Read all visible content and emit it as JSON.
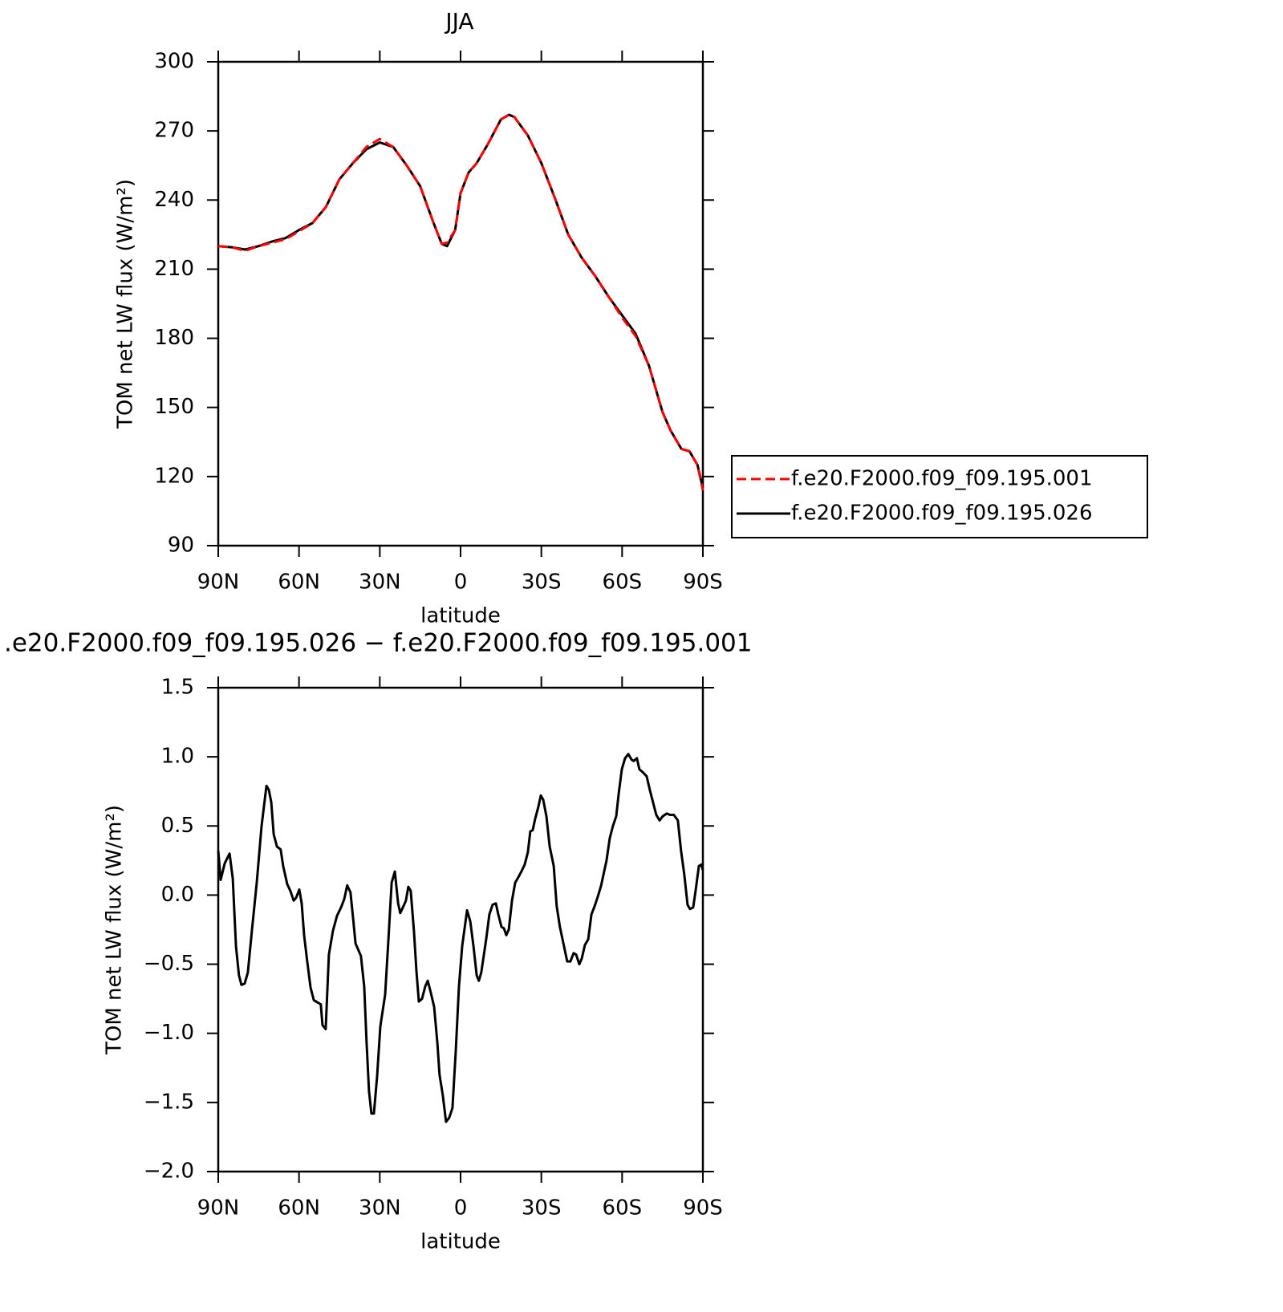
{
  "chart_data": [
    {
      "type": "line",
      "title": "JJA",
      "x_label": "latitude",
      "y_label": "TOM net LW flux (W/m²)",
      "x": [
        90,
        85,
        80,
        75,
        70,
        65,
        60,
        55,
        50,
        45,
        40,
        35,
        30,
        25,
        20,
        15,
        10,
        7,
        5,
        2,
        0,
        -3,
        -6,
        -10,
        -15,
        -18,
        -20,
        -25,
        -30,
        -35,
        -40,
        -45,
        -50,
        -55,
        -60,
        -65,
        -70,
        -75,
        -78,
        -82,
        -85,
        -88,
        -90
      ],
      "series": [
        {
          "name": "f.e20.F2000.f09_f09.195.001",
          "color": "#ff0000",
          "linestyle": "dashed",
          "values": [
            220,
            219.5,
            218,
            220,
            221.5,
            223,
            226.5,
            230,
            237,
            249,
            256,
            263,
            266.5,
            263,
            255,
            246,
            230,
            221,
            221.5,
            227,
            243,
            252,
            256,
            264,
            275,
            277,
            276,
            268,
            256,
            241,
            225,
            215,
            207,
            198,
            189,
            181,
            168,
            148,
            140,
            132,
            131,
            125,
            114
          ]
        },
        {
          "name": "f.e20.F2000.f09_f09.195.026",
          "color": "#000000",
          "linestyle": "solid",
          "values": [
            220,
            219.5,
            218.5,
            220,
            222,
            223.5,
            227,
            230,
            237,
            249,
            256,
            262,
            265,
            263,
            255,
            246,
            230,
            221,
            220,
            227,
            243,
            252,
            256,
            264,
            275,
            277,
            276,
            268,
            256,
            241,
            225,
            215,
            207,
            198,
            190,
            182,
            168,
            148,
            140,
            132,
            131,
            125,
            115
          ]
        }
      ],
      "xlim": [
        90,
        -90
      ],
      "xticks": [
        {
          "value": 90,
          "label": "90N"
        },
        {
          "value": 60,
          "label": "60N"
        },
        {
          "value": 30,
          "label": "30N"
        },
        0,
        {
          "value": -30,
          "label": "30S"
        },
        {
          "value": -60,
          "label": "60S"
        },
        {
          "value": -90,
          "label": "90S"
        }
      ],
      "ylim": [
        90,
        300
      ],
      "yticks": [
        90,
        120,
        150,
        180,
        210,
        240,
        270,
        300
      ],
      "legend_position": "right"
    },
    {
      "type": "line",
      "title": ".e20.F2000.f09_f09.195.026 − f.e20.F2000.f09_f09.195.001",
      "x_label": "latitude",
      "y_label": "TOM net LW flux (W/m²)",
      "x": [
        90,
        89.1,
        87.6,
        85.8,
        84.6,
        83.4,
        82.3,
        81.4,
        80.2,
        79,
        77.5,
        75.7,
        73.9,
        72.1,
        71.2,
        70.3,
        69.4,
        68.2,
        66.8,
        65.9,
        64.4,
        63.2,
        62,
        61.1,
        59.9,
        59,
        58.1,
        56.9,
        55.7,
        54.5,
        52.8,
        51.9,
        51.3,
        50.1,
        48.9,
        47.4,
        45.9,
        44.4,
        43.2,
        42.1,
        40.9,
        39.9,
        39,
        37.9,
        37,
        35.8,
        34.9,
        34,
        33.1,
        32.2,
        31,
        29.8,
        28,
        26.8,
        25.6,
        24.4,
        23.2,
        22.4,
        21.2,
        20.3,
        19.4,
        18.5,
        17.3,
        16.4,
        15.5,
        14.3,
        13.1,
        12.2,
        11,
        9.8,
        8.6,
        7.8,
        6.6,
        5.4,
        4.2,
        3,
        1.8,
        0.6,
        -0.6,
        -2.4,
        -3.6,
        -4.8,
        -6,
        -6.8,
        -7.7,
        -9.5,
        -10.7,
        -11.9,
        -13.1,
        -14,
        -15.2,
        -16.1,
        -17,
        -17.9,
        -19.1,
        -20.3,
        -21.5,
        -22.6,
        -23.8,
        -25,
        -25.9,
        -26.8,
        -27.7,
        -28.9,
        -29.8,
        -30.7,
        -31.9,
        -33.1,
        -34.6,
        -35.7,
        -36.9,
        -38.4,
        -39.6,
        -40.8,
        -42,
        -42.9,
        -44.1,
        -45,
        -46.2,
        -47.4,
        -48.6,
        -49.8,
        -51,
        -52.2,
        -53,
        -54.2,
        -55.4,
        -56.6,
        -57.8,
        -58.7,
        -59.9,
        -61.1,
        -62.3,
        -63.5,
        -64.3,
        -65.5,
        -66.4,
        -67.6,
        -69.1,
        -70.3,
        -71.5,
        -72.7,
        -73.9,
        -75.1,
        -76.6,
        -77.8,
        -79.2,
        -80.7,
        -81.9,
        -83.1,
        -84.3,
        -85.2,
        -86.4,
        -87.3,
        -88.5,
        -89.4,
        -90
      ],
      "values": [
        0.32,
        0.11,
        0.23,
        0.3,
        0.12,
        -0.37,
        -0.58,
        -0.65,
        -0.64,
        -0.56,
        -0.26,
        0.09,
        0.5,
        0.79,
        0.76,
        0.67,
        0.44,
        0.35,
        0.33,
        0.21,
        0.08,
        0.03,
        -0.04,
        -0.02,
        0.04,
        -0.06,
        -0.29,
        -0.49,
        -0.67,
        -0.76,
        -0.78,
        -0.79,
        -0.94,
        -0.97,
        -0.43,
        -0.26,
        -0.15,
        -0.09,
        -0.03,
        0.07,
        0.02,
        -0.17,
        -0.35,
        -0.4,
        -0.44,
        -0.66,
        -1.07,
        -1.42,
        -1.58,
        -1.58,
        -1.31,
        -0.95,
        -0.72,
        -0.32,
        0.09,
        0.17,
        -0.06,
        -0.13,
        -0.08,
        -0.04,
        0.06,
        0.03,
        -0.26,
        -0.55,
        -0.77,
        -0.75,
        -0.66,
        -0.62,
        -0.71,
        -0.81,
        -1.07,
        -1.3,
        -1.45,
        -1.64,
        -1.61,
        -1.54,
        -1.13,
        -0.66,
        -0.37,
        -0.11,
        -0.19,
        -0.37,
        -0.58,
        -0.62,
        -0.56,
        -0.32,
        -0.14,
        -0.07,
        -0.06,
        -0.14,
        -0.23,
        -0.24,
        -0.29,
        -0.25,
        -0.04,
        0.09,
        0.13,
        0.17,
        0.22,
        0.31,
        0.46,
        0.47,
        0.55,
        0.64,
        0.72,
        0.69,
        0.57,
        0.35,
        0.21,
        -0.08,
        -0.23,
        -0.37,
        -0.48,
        -0.48,
        -0.42,
        -0.43,
        -0.5,
        -0.46,
        -0.36,
        -0.32,
        -0.14,
        -0.08,
        -0.01,
        0.07,
        0.14,
        0.25,
        0.41,
        0.5,
        0.57,
        0.73,
        0.91,
        0.99,
        1.02,
        0.98,
        0.97,
        0.99,
        0.91,
        0.89,
        0.86,
        0.76,
        0.67,
        0.58,
        0.54,
        0.57,
        0.59,
        0.58,
        0.58,
        0.54,
        0.32,
        0.15,
        -0.07,
        -0.1,
        -0.09,
        0.03,
        0.21,
        0.22,
        0.18
      ],
      "color": "#000000",
      "xlim": [
        90,
        -90
      ],
      "xticks": [
        {
          "value": 90,
          "label": "90N"
        },
        {
          "value": 60,
          "label": "60N"
        },
        {
          "value": 30,
          "label": "30N"
        },
        0,
        {
          "value": -30,
          "label": "30S"
        },
        {
          "value": -60,
          "label": "60S"
        },
        {
          "value": -90,
          "label": "90S"
        }
      ],
      "ylim": [
        -2.0,
        1.5
      ],
      "yticks": [
        {
          "value": 1.5,
          "label": "1.5"
        },
        {
          "value": 1.0,
          "label": "1.0"
        },
        {
          "value": 0.5,
          "label": "0.5"
        },
        {
          "value": 0.0,
          "label": "0.0"
        },
        {
          "value": -0.5,
          "label": "−0.5"
        },
        {
          "value": -1.0,
          "label": "−1.0"
        },
        {
          "value": -1.5,
          "label": "−1.5"
        },
        {
          "value": -2.0,
          "label": "−2.0"
        }
      ]
    }
  ]
}
